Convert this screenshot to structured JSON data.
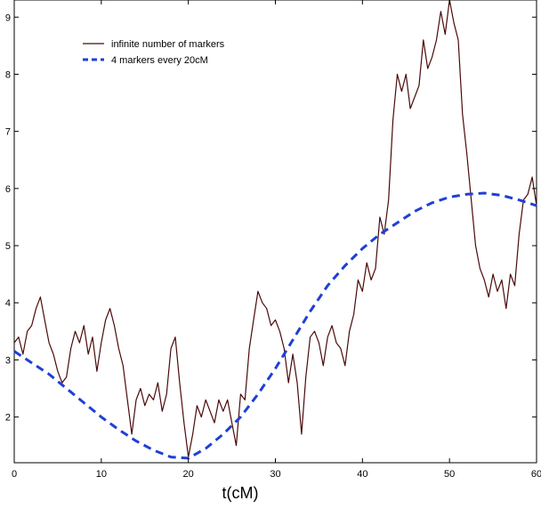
{
  "chart_data": {
    "type": "line",
    "xlabel": "t(cM)",
    "ylabel": "",
    "xlim": [
      0,
      60
    ],
    "ylim": [
      1.2,
      9.3
    ],
    "xticks": [
      0,
      10,
      20,
      30,
      40,
      50,
      60
    ],
    "yticks": [
      2,
      3,
      4,
      5,
      6,
      7,
      8,
      9
    ],
    "legend_position": "top-left",
    "grid": false,
    "series": [
      {
        "name": "infinite number of markers",
        "color": "#4a0a0a",
        "style": "solid",
        "x": [
          0,
          0.5,
          1,
          1.5,
          2,
          2.5,
          3,
          3.5,
          4,
          4.5,
          5,
          5.5,
          6,
          6.5,
          7,
          7.5,
          8,
          8.5,
          9,
          9.5,
          10,
          10.5,
          11,
          11.5,
          12,
          12.5,
          13,
          13.5,
          14,
          14.5,
          15,
          15.5,
          16,
          16.5,
          17,
          17.5,
          18,
          18.5,
          19,
          19.5,
          20,
          20.5,
          21,
          21.5,
          22,
          22.5,
          23,
          23.5,
          24,
          24.5,
          25,
          25.5,
          26,
          26.5,
          27,
          27.5,
          28,
          28.5,
          29,
          29.5,
          30,
          30.5,
          31,
          31.5,
          32,
          32.5,
          33,
          33.5,
          34,
          34.5,
          35,
          35.5,
          36,
          36.5,
          37,
          37.5,
          38,
          38.5,
          39,
          39.5,
          40,
          40.5,
          41,
          41.5,
          42,
          42.5,
          43,
          43.5,
          44,
          44.5,
          45,
          45.5,
          46,
          46.5,
          47,
          47.5,
          48,
          48.5,
          49,
          49.5,
          50,
          50.5,
          51,
          51.5,
          52,
          52.5,
          53,
          53.5,
          54,
          54.5,
          55,
          55.5,
          56,
          56.5,
          57,
          57.5,
          58,
          58.5,
          59,
          59.5,
          60
        ],
        "values": [
          3.3,
          3.4,
          3.1,
          3.5,
          3.6,
          3.9,
          4.1,
          3.7,
          3.3,
          3.1,
          2.8,
          2.6,
          2.7,
          3.2,
          3.5,
          3.3,
          3.6,
          3.1,
          3.4,
          2.8,
          3.3,
          3.7,
          3.9,
          3.6,
          3.2,
          2.9,
          2.3,
          1.7,
          2.3,
          2.5,
          2.2,
          2.4,
          2.3,
          2.6,
          2.1,
          2.4,
          3.2,
          3.4,
          2.6,
          1.9,
          1.3,
          1.7,
          2.2,
          2.0,
          2.3,
          2.1,
          1.9,
          2.3,
          2.1,
          2.3,
          1.9,
          1.5,
          2.4,
          2.3,
          3.2,
          3.7,
          4.2,
          4.0,
          3.9,
          3.6,
          3.7,
          3.5,
          3.2,
          2.6,
          3.1,
          2.6,
          1.7,
          2.7,
          3.4,
          3.5,
          3.3,
          2.9,
          3.4,
          3.6,
          3.3,
          3.2,
          2.9,
          3.5,
          3.8,
          4.4,
          4.2,
          4.7,
          4.4,
          4.6,
          5.5,
          5.2,
          5.8,
          7.2,
          8.0,
          7.7,
          8.0,
          7.4,
          7.6,
          7.8,
          8.6,
          8.1,
          8.3,
          8.6,
          9.1,
          8.7,
          9.3,
          8.9,
          8.6,
          7.3,
          6.6,
          5.8,
          5.0,
          4.6,
          4.4,
          4.1,
          4.5,
          4.2,
          4.4,
          3.9,
          4.5,
          4.3,
          5.2,
          5.8,
          5.9,
          6.2,
          5.7
        ]
      },
      {
        "name": "4 markers every 20cM",
        "color": "#1f3fd6",
        "style": "dashed",
        "x": [
          0,
          2,
          4,
          6,
          8,
          10,
          12,
          14,
          16,
          18,
          20,
          22,
          24,
          26,
          28,
          30,
          32,
          34,
          36,
          38,
          40,
          42,
          44,
          46,
          48,
          50,
          52,
          54,
          56,
          58,
          60
        ],
        "values": [
          3.15,
          2.95,
          2.75,
          2.5,
          2.25,
          2.0,
          1.78,
          1.58,
          1.42,
          1.3,
          1.28,
          1.45,
          1.7,
          2.0,
          2.4,
          2.85,
          3.35,
          3.85,
          4.3,
          4.65,
          4.95,
          5.2,
          5.4,
          5.6,
          5.75,
          5.85,
          5.9,
          5.92,
          5.88,
          5.8,
          5.7
        ]
      }
    ]
  }
}
